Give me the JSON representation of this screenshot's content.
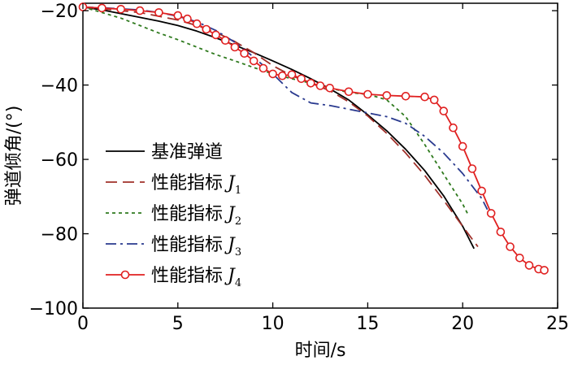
{
  "chart_data": {
    "type": "line",
    "title": "",
    "xlabel": "时间/s",
    "ylabel": "弹道倾角/(°)",
    "xlim": [
      0,
      25
    ],
    "ylim": [
      -100,
      -18
    ],
    "xticks": [
      0,
      5,
      10,
      15,
      20,
      25
    ],
    "yticks": [
      -20,
      -40,
      -60,
      -80,
      -100
    ],
    "xtick_labels": [
      "0",
      "5",
      "10",
      "15",
      "20",
      "25"
    ],
    "ytick_labels": [
      "−20",
      "−40",
      "−60",
      "−80",
      "−100"
    ],
    "grid": false,
    "legend_position": "lower-left",
    "colors": {
      "baseline": "#000000",
      "j1": "#a0302a",
      "j2": "#2f7a1e",
      "j3": "#2a3a8f",
      "j4": "#e02020"
    },
    "series": [
      {
        "key": "baseline",
        "name": "基准弹道",
        "symbol": "",
        "subscript": "",
        "style": "solid",
        "x": [
          0,
          1,
          2,
          3,
          4,
          5,
          6,
          7,
          8,
          9,
          10,
          11,
          12,
          13,
          14,
          15,
          16,
          17,
          18,
          19,
          20,
          20.6
        ],
        "y": [
          -19,
          -19.8,
          -20.8,
          -21.8,
          -22.8,
          -24,
          -25.5,
          -27.3,
          -29.3,
          -31.3,
          -33.5,
          -35.8,
          -38.3,
          -41,
          -44,
          -48,
          -52.3,
          -57.3,
          -63,
          -69.8,
          -78,
          -84
        ]
      },
      {
        "key": "j1",
        "name": "性能指标",
        "symbol": "J",
        "subscript": "1",
        "style": "longdash",
        "x": [
          0,
          1,
          2,
          3,
          4,
          5,
          6,
          7,
          8,
          9,
          10,
          11,
          12,
          13,
          14,
          15,
          16,
          17,
          18,
          19,
          20,
          20.8
        ],
        "y": [
          -19,
          -19.5,
          -20,
          -20.5,
          -21.5,
          -22.5,
          -24,
          -25.8,
          -28.3,
          -31.3,
          -34.8,
          -37.5,
          -39.5,
          -41.5,
          -44.5,
          -48.3,
          -53,
          -58.3,
          -64.3,
          -71,
          -78,
          -83.5
        ]
      },
      {
        "key": "j2",
        "name": "性能指标",
        "symbol": "J",
        "subscript": "2",
        "style": "shortdash",
        "x": [
          0,
          1,
          2,
          3,
          4,
          5,
          6,
          7,
          8,
          9,
          10,
          11,
          12,
          13,
          14,
          15,
          16,
          17,
          18,
          19,
          20,
          20.3
        ],
        "y": [
          -19,
          -20.5,
          -22,
          -24,
          -26,
          -27.8,
          -29.8,
          -31.8,
          -33.5,
          -35.3,
          -37,
          -38.3,
          -39.5,
          -40.8,
          -42,
          -42.5,
          -44,
          -48.5,
          -56,
          -64,
          -72,
          -75
        ]
      },
      {
        "key": "j3",
        "name": "性能指标",
        "symbol": "J",
        "subscript": "3",
        "style": "dashdot",
        "x": [
          0,
          1,
          2,
          3,
          4,
          5,
          6,
          7,
          8,
          9,
          10,
          11,
          12,
          13,
          14,
          15,
          16,
          17,
          18,
          19,
          20,
          21,
          21.3
        ],
        "y": [
          -19,
          -19.2,
          -19.5,
          -19.8,
          -20.5,
          -21.5,
          -23,
          -25.3,
          -28.5,
          -32.5,
          -37,
          -42,
          -44.8,
          -45.5,
          -46.5,
          -47.5,
          -48.5,
          -50.3,
          -53.8,
          -58.3,
          -63.8,
          -70.5,
          -73.5
        ]
      },
      {
        "key": "j4",
        "name": "性能指标",
        "symbol": "J",
        "subscript": "4",
        "style": "solid-circle",
        "x": [
          0,
          1,
          2,
          3,
          4,
          5,
          5.5,
          6,
          6.5,
          7,
          7.5,
          8,
          8.5,
          9,
          9.5,
          10,
          10.5,
          11,
          11.5,
          12,
          12.5,
          13,
          14,
          15,
          16,
          17,
          18,
          18.5,
          19,
          19.5,
          20,
          20.5,
          21,
          21.5,
          22,
          22.5,
          23,
          23.5,
          24,
          24.3
        ],
        "y": [
          -19,
          -19.3,
          -19.6,
          -20,
          -20.5,
          -21.3,
          -22.2,
          -23.5,
          -25,
          -26.5,
          -28,
          -29.8,
          -31.5,
          -33.5,
          -35.5,
          -37,
          -37.5,
          -37.2,
          -38.3,
          -39.5,
          -40.2,
          -40.8,
          -41.8,
          -42.5,
          -42.8,
          -43,
          -43.2,
          -44,
          -47,
          -51.5,
          -56.5,
          -62.5,
          -68.5,
          -74.5,
          -79.5,
          -83.5,
          -86.5,
          -88.5,
          -89.5,
          -89.8
        ]
      }
    ]
  }
}
